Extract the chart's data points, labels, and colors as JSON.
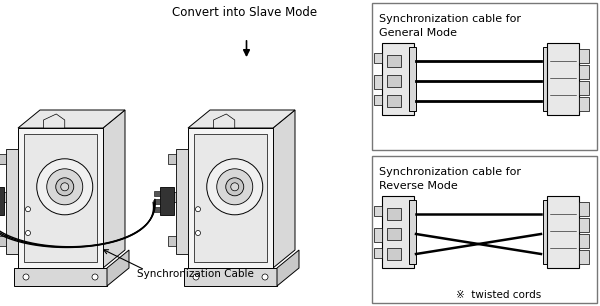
{
  "bg_color": "#ffffff",
  "lc": "#000000",
  "gray1": "#f5f5f5",
  "gray2": "#e8e8e8",
  "gray3": "#d8d8d8",
  "gray4": "#c8c8c8",
  "gray5": "#aaaaaa",
  "title_slave": "Convert into Slave Mode",
  "label_sync": "Synchronization Cable",
  "box1_line1": "Synchronization cable for",
  "box1_line2": "General Mode",
  "box2_line1": "Synchronization cable for",
  "box2_line2": "Reverse Mode",
  "note": "※  twisted cords",
  "figsize": [
    6.0,
    3.06
  ],
  "dpi": 100
}
